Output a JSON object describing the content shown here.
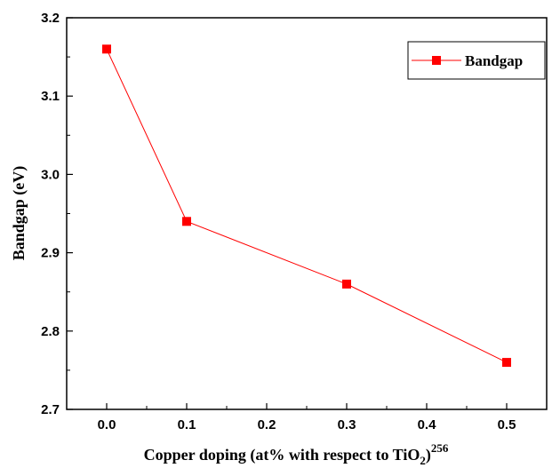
{
  "chart_data": {
    "type": "line",
    "xlabel": "Copper doping (at% with respect to TiO",
    "xlabel_subscript": "2",
    "xlabel_suffix": ")",
    "xlabel_superscript": "256",
    "ylabel": "Bandgap (eV)",
    "xlim": [
      -0.05,
      0.55
    ],
    "ylim": [
      2.7,
      3.2
    ],
    "x_ticks": [
      "0.0",
      "0.1",
      "0.2",
      "0.3",
      "0.4",
      "0.5"
    ],
    "y_ticks": [
      "2.7",
      "2.8",
      "2.9",
      "3.0",
      "3.1",
      "3.2"
    ],
    "legend_position": "top-right",
    "grid": false,
    "series": [
      {
        "name": "Bandgap",
        "color": "#ff0000",
        "marker": "square",
        "x": [
          0.0,
          0.1,
          0.3,
          0.5
        ],
        "y": [
          3.16,
          2.94,
          2.86,
          2.76
        ]
      }
    ]
  }
}
